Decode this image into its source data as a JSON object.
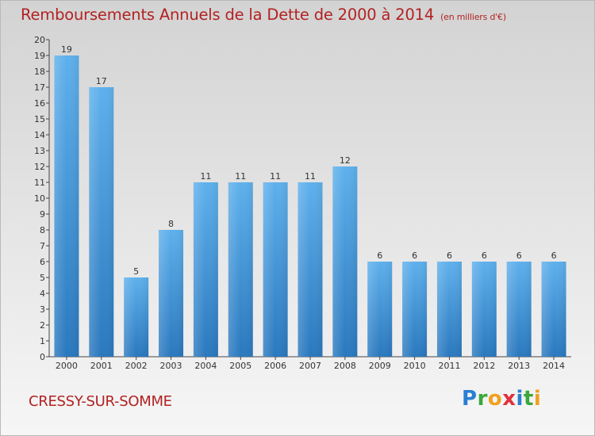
{
  "title": "Remboursements Annuels de la Dette de 2000 à 2014",
  "subtitle": "(en milliers d'€)",
  "commune": "CRESSY-SUR-SOMME",
  "logo": {
    "letters": [
      "P",
      "r",
      "o",
      "x",
      "i",
      "t",
      "i"
    ],
    "colors": [
      "#2a7fd4",
      "#3aa83a",
      "#f0a020",
      "#e0303a",
      "#2a7fd4",
      "#3aa83a",
      "#f0a020"
    ]
  },
  "colors": {
    "title": "#b22222",
    "bar_top": "#5eb0ec",
    "bar_bottom": "#2a78be",
    "axis": "#444444"
  },
  "chart_data": {
    "type": "bar",
    "categories": [
      "2000",
      "2001",
      "2002",
      "2003",
      "2004",
      "2005",
      "2006",
      "2007",
      "2008",
      "2009",
      "2010",
      "2011",
      "2012",
      "2013",
      "2014"
    ],
    "values": [
      19,
      17,
      5,
      8,
      11,
      11,
      11,
      11,
      12,
      6,
      6,
      6,
      6,
      6,
      6
    ],
    "ylim": [
      0,
      20
    ],
    "yticks": [
      0,
      1,
      2,
      3,
      4,
      5,
      6,
      7,
      8,
      9,
      10,
      11,
      12,
      13,
      14,
      15,
      16,
      17,
      18,
      19,
      20
    ],
    "data_labels": true,
    "grid": false
  }
}
